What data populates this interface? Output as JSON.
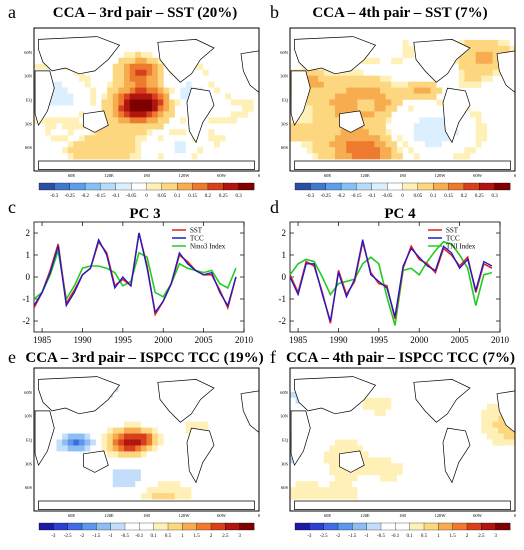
{
  "panels": {
    "a": {
      "letter": "a",
      "title": "CCA – 3rd pair – SST (20%)"
    },
    "b": {
      "letter": "b",
      "title": "CCA – 4th pair – SST (7%)"
    },
    "c": {
      "letter": "c",
      "title": "PC 3"
    },
    "d": {
      "letter": "d",
      "title": "PC 4"
    },
    "e": {
      "letter": "e",
      "title": "CCA – 3rd pair – ISPCC TCC (19%)"
    },
    "f": {
      "letter": "f",
      "title": "CCA – 4th pair – ISPCC TCC (7%)"
    }
  },
  "map_axes": {
    "lon_ticks": [
      "60E",
      "120E",
      "180",
      "120W",
      "60W",
      "0"
    ],
    "lat_ticks": [
      "60N",
      "30N",
      "EQ",
      "30S",
      "60S"
    ]
  },
  "colorbars": {
    "sst": {
      "labels": [
        "-0.3",
        "-0.25",
        "-0.2",
        "-0.15",
        "-0.1",
        "-0.05",
        "0",
        "0.05",
        "0.1",
        "0.15",
        "0.2",
        "0.25",
        "0.3"
      ],
      "colors": [
        "#2a4fa3",
        "#3f78cf",
        "#5b9fe6",
        "#86c0f2",
        "#b6dcfa",
        "#dcefff",
        "#ffffff",
        "#fff0b8",
        "#fcd77f",
        "#f7ad4f",
        "#ee7a2f",
        "#d8401d",
        "#b0160f",
        "#7f0000"
      ]
    },
    "tcc": {
      "labels": [
        "-3",
        "-2.5",
        "-2",
        "-1.5",
        "-1",
        "-0.5",
        "-0.1",
        "0.1",
        "0.5",
        "1",
        "1.5",
        "2",
        "2.5",
        "3"
      ],
      "colors": [
        "#1d1aa5",
        "#2c3fd0",
        "#3f6de0",
        "#5c97ea",
        "#8dbdf2",
        "#c2defa",
        "#ffffff",
        "#ffffff",
        "#fff0b8",
        "#fcd77f",
        "#f7ad4f",
        "#ee7a2f",
        "#d8401d",
        "#b0160f",
        "#7f0000"
      ]
    }
  },
  "colors": {
    "sst": "#e02020",
    "tcc": "#1a1acc",
    "index": "#22cc22"
  },
  "chart_data": [
    {
      "type": "line",
      "panel": "c",
      "title": "PC 3",
      "x": [
        1984,
        1985,
        1986,
        1987,
        1988,
        1989,
        1990,
        1991,
        1992,
        1993,
        1994,
        1995,
        1996,
        1997,
        1998,
        1999,
        2000,
        2001,
        2002,
        2003,
        2004,
        2005,
        2006,
        2007,
        2008,
        2009
      ],
      "xlim": [
        1984,
        2010
      ],
      "ylim": [
        -2.5,
        2.5
      ],
      "xticks": [
        1985,
        1990,
        1995,
        2000,
        2005,
        2010
      ],
      "yticks": [
        -2,
        -1,
        0,
        1,
        2
      ],
      "legend_position": "top-right",
      "series": [
        {
          "name": "SST",
          "values": [
            -1.4,
            -0.7,
            0.3,
            1.5,
            -1.2,
            -0.6,
            0.1,
            0.4,
            1.6,
            1.1,
            -0.4,
            -0.1,
            -0.4,
            2.0,
            0.5,
            -1.7,
            -1.1,
            -0.3,
            1.0,
            0.7,
            0.3,
            0.1,
            0.1,
            -0.6,
            -1.4,
            0.0
          ]
        },
        {
          "name": "TCC",
          "values": [
            -1.3,
            -0.7,
            0.2,
            1.4,
            -1.3,
            -0.7,
            0.1,
            0.4,
            1.7,
            1.0,
            -0.5,
            0.0,
            -0.4,
            2.0,
            0.4,
            -1.6,
            -1.1,
            -0.3,
            1.1,
            0.6,
            0.3,
            0.1,
            0.2,
            -0.7,
            -1.3,
            0.0
          ]
        },
        {
          "name": "Nino3 Index",
          "values": [
            -1.0,
            -0.7,
            0.1,
            1.2,
            -1.0,
            -0.4,
            0.4,
            0.5,
            0.5,
            0.4,
            0.2,
            -0.4,
            -0.2,
            1.1,
            0.9,
            -0.7,
            -0.9,
            -0.3,
            0.6,
            0.4,
            0.3,
            0.2,
            0.3,
            -0.3,
            -0.5,
            0.4
          ]
        }
      ]
    },
    {
      "type": "line",
      "panel": "d",
      "title": "PC 4",
      "x": [
        1984,
        1985,
        1986,
        1987,
        1988,
        1989,
        1990,
        1991,
        1992,
        1993,
        1994,
        1995,
        1996,
        1997,
        1998,
        1999,
        2000,
        2001,
        2002,
        2003,
        2004,
        2005,
        2006,
        2007,
        2008,
        2009
      ],
      "xlim": [
        1984,
        2010
      ],
      "ylim": [
        -2.5,
        2.5
      ],
      "xticks": [
        1985,
        1990,
        1995,
        2000,
        2005,
        2010
      ],
      "yticks": [
        -2,
        -1,
        0,
        1,
        2
      ],
      "legend_position": "top-right",
      "series": [
        {
          "name": "SST",
          "values": [
            0.1,
            -0.7,
            0.7,
            0.5,
            -0.7,
            -2.1,
            0.3,
            -0.8,
            -0.2,
            1.6,
            0.2,
            -0.3,
            -0.4,
            -1.9,
            0.4,
            1.4,
            0.8,
            0.6,
            0.2,
            1.3,
            1.0,
            0.5,
            0.9,
            -0.7,
            0.6,
            0.4
          ]
        },
        {
          "name": "TCC",
          "values": [
            0.0,
            -0.8,
            0.6,
            0.6,
            -0.8,
            -2.0,
            0.2,
            -0.9,
            -0.1,
            1.7,
            0.1,
            -0.2,
            -0.5,
            -1.8,
            0.5,
            1.3,
            0.9,
            0.5,
            0.3,
            1.4,
            1.1,
            0.4,
            0.8,
            -0.6,
            0.7,
            0.5
          ]
        },
        {
          "name": "TNI Index",
          "values": [
            0.1,
            0.6,
            0.8,
            0.7,
            0.0,
            -0.8,
            -0.3,
            -0.2,
            -0.1,
            0.6,
            0.9,
            0.6,
            -0.9,
            -2.2,
            0.3,
            0.4,
            0.1,
            0.7,
            1.2,
            1.6,
            1.5,
            1.0,
            0.4,
            -1.3,
            0.1,
            0.2
          ]
        }
      ]
    }
  ]
}
